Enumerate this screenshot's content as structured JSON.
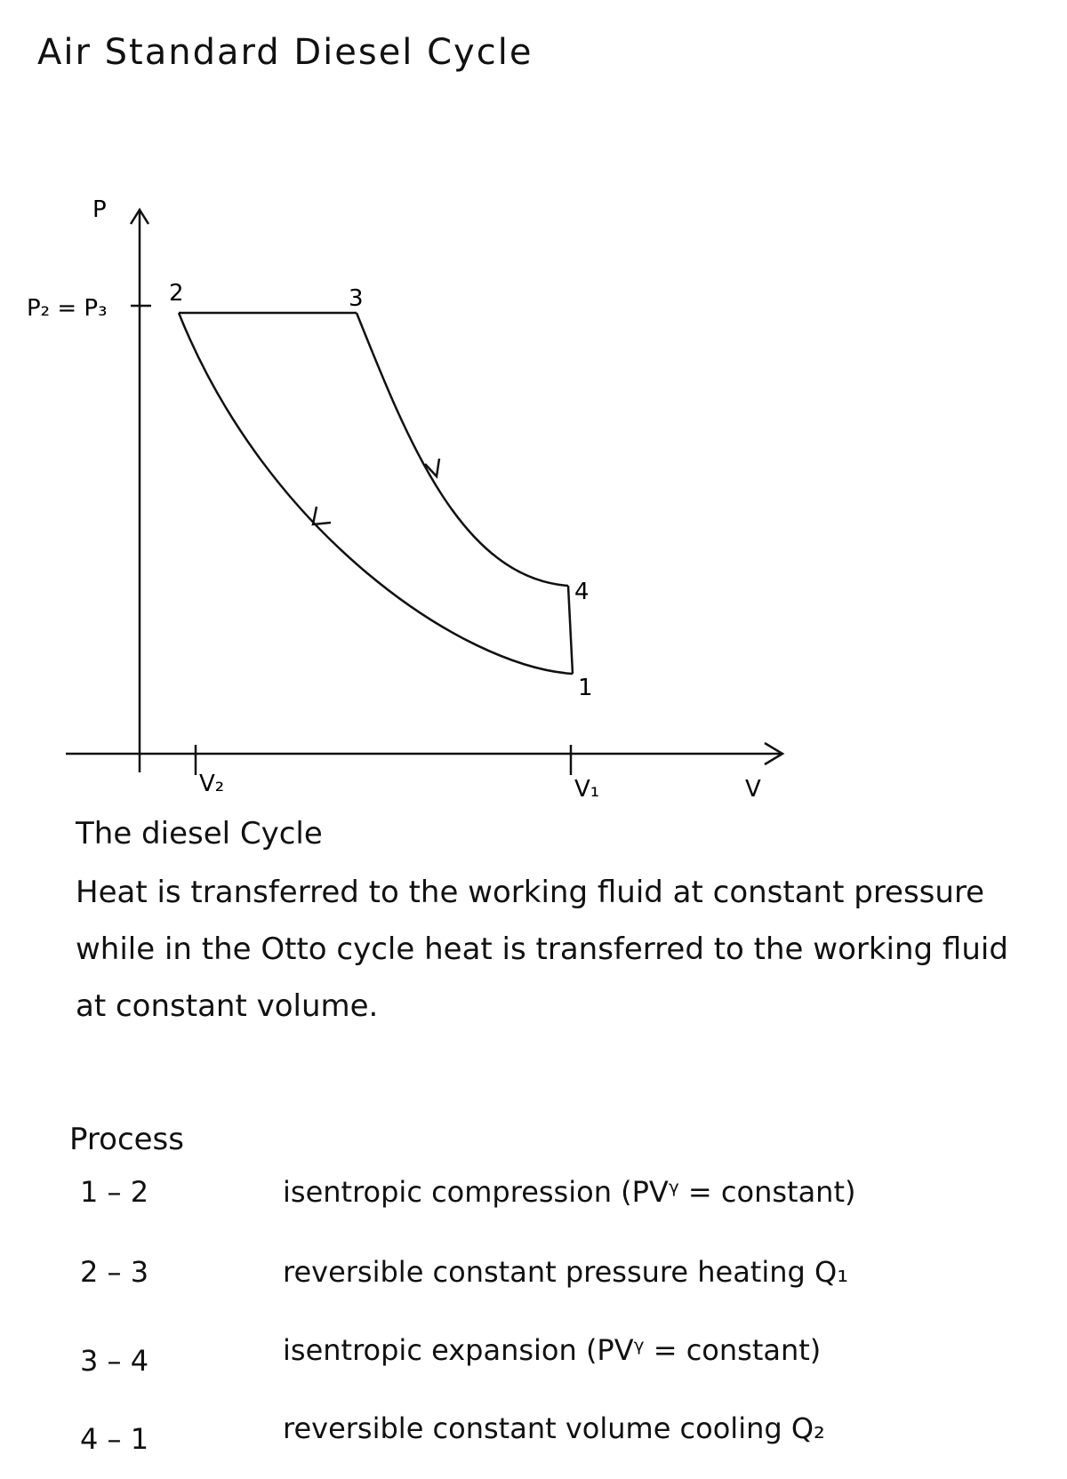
{
  "title": "Air Standard Diesel Cycle",
  "diagram": {
    "y_axis_label": "P",
    "x_axis_label": "V",
    "pressure_label": "P₂ = P₃",
    "points": {
      "p1": "1",
      "p2": "2",
      "p3": "3",
      "p4": "4"
    },
    "volume_labels": {
      "v2": "V₂",
      "v1": "V₁"
    }
  },
  "description": {
    "heading": "The diesel Cycle",
    "text": "Heat is transferred to the working fluid at constant pressure while in the Otto cycle heat is transferred to the working fluid at constant volume."
  },
  "processes": {
    "heading": "Process",
    "rows": [
      [
        "1 – 2",
        "isentropic compression (PVᵞ = constant)"
      ],
      [
        "2 – 3",
        "reversible constant pressure heating Q₁"
      ],
      [
        "3 – 4",
        "isentropic expansion (PVᵞ = constant)"
      ],
      [
        "4 – 1",
        "reversible constant volume cooling Q₂"
      ]
    ]
  }
}
